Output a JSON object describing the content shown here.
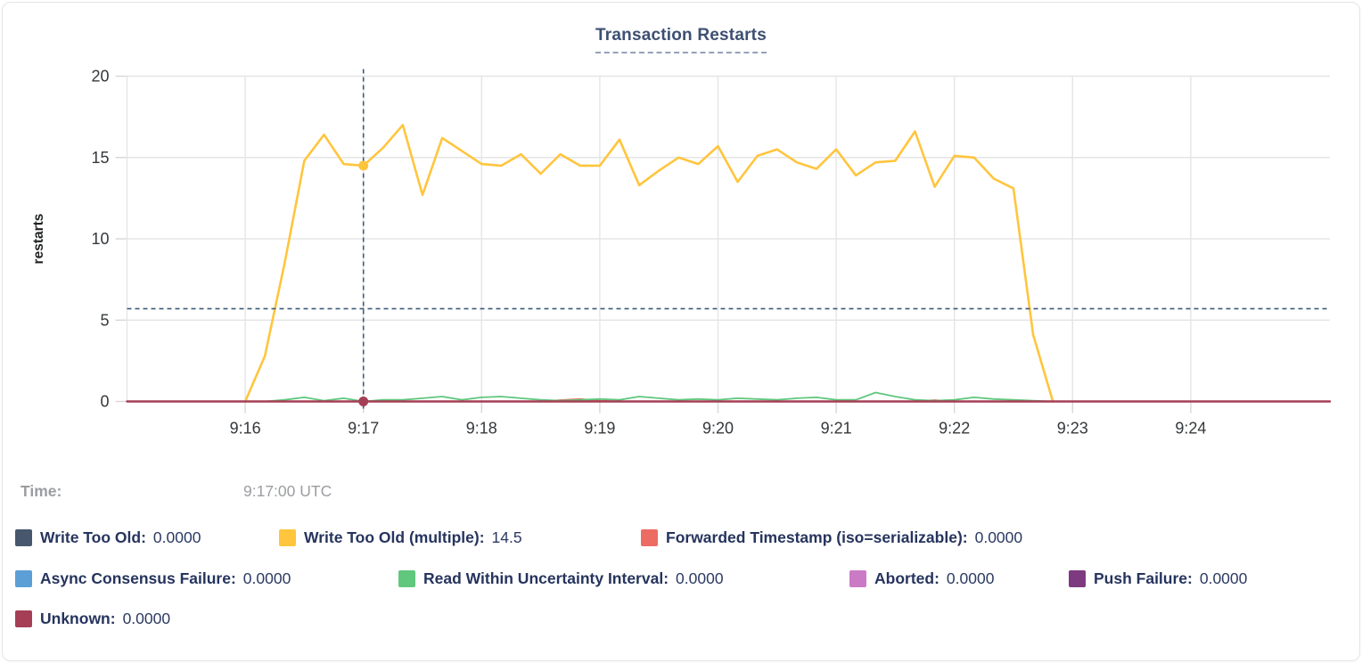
{
  "time_row": {
    "label": "Time:",
    "value": "9:17:00 UTC"
  },
  "chart_data": {
    "type": "line",
    "title": "Transaction Restarts",
    "xlabel": "",
    "ylabel": "restarts",
    "ylim": [
      0,
      20
    ],
    "yticks": [
      0,
      5,
      10,
      15,
      20
    ],
    "xticks": [
      "9:16",
      "9:17",
      "9:18",
      "9:19",
      "9:20",
      "9:21",
      "9:22",
      "9:23",
      "9:24"
    ],
    "x_domain": [
      "9:15:00",
      "9:25:10"
    ],
    "grid": true,
    "legend_position": "bottom",
    "hover": {
      "time": "9:17:00",
      "time_label": "9:17:00 UTC",
      "crosshair_y_value": 5.7,
      "points": [
        {
          "series": "Write Too Old (multiple)",
          "value": 14.5
        },
        {
          "series": "Unknown",
          "value": 0
        }
      ]
    },
    "series": [
      {
        "name": "Write Too Old",
        "color": "#47586d",
        "display_value": "0.0000",
        "constant": 0
      },
      {
        "name": "Write Too Old (multiple)",
        "color": "#ffc53d",
        "display_value": "14.5",
        "start": "9:16:00",
        "step_seconds": 10,
        "values": [
          0,
          2.8,
          8.5,
          14.8,
          16.4,
          14.6,
          14.5,
          15.6,
          17.0,
          12.7,
          16.2,
          15.4,
          14.6,
          14.5,
          15.2,
          14.0,
          15.2,
          14.5,
          14.5,
          16.1,
          13.3,
          14.2,
          15.0,
          14.6,
          15.7,
          13.5,
          15.1,
          15.5,
          14.7,
          14.3,
          15.5,
          13.9,
          14.7,
          14.8,
          16.6,
          13.2,
          15.1,
          15.0,
          13.7,
          13.1,
          4.1,
          0
        ]
      },
      {
        "name": "Forwarded Timestamp (iso=serializable)",
        "color": "#ec6c63",
        "display_value": "0.0000",
        "start": "9:16:00",
        "step_seconds": 10,
        "values": [
          0,
          0,
          0,
          0,
          0,
          0,
          0,
          0,
          0,
          0,
          0,
          0,
          0,
          0,
          0,
          0,
          0.08,
          0.15,
          0.05,
          0,
          0,
          0,
          0,
          0,
          0,
          0,
          0,
          0,
          0,
          0,
          0,
          0,
          0,
          0,
          0,
          0.08,
          0,
          0,
          0,
          0,
          0,
          0
        ]
      },
      {
        "name": "Async Consensus Failure",
        "color": "#5c9fd6",
        "display_value": "0.0000",
        "constant": 0
      },
      {
        "name": "Read Within Uncertainty Interval",
        "color": "#60c77d",
        "display_value": "0.0000",
        "start": "9:16:00",
        "step_seconds": 10,
        "values": [
          0,
          0,
          0.1,
          0.25,
          0.05,
          0.2,
          0,
          0.1,
          0.1,
          0.2,
          0.3,
          0.1,
          0.25,
          0.3,
          0.2,
          0.1,
          0.05,
          0.1,
          0.15,
          0.1,
          0.3,
          0.2,
          0.1,
          0.15,
          0.1,
          0.2,
          0.15,
          0.1,
          0.2,
          0.25,
          0.1,
          0.1,
          0.55,
          0.3,
          0.1,
          0.05,
          0.1,
          0.25,
          0.15,
          0.1,
          0.05,
          0
        ]
      },
      {
        "name": "Aborted",
        "color": "#cb7bc5",
        "display_value": "0.0000",
        "constant": 0
      },
      {
        "name": "Push Failure",
        "color": "#7e3a80",
        "display_value": "0.0000",
        "constant": 0
      },
      {
        "name": "Unknown",
        "color": "#a53f55",
        "display_value": "0.0000",
        "constant": 0
      }
    ],
    "style": {
      "grid_color": "#e5e5e5",
      "tick_color": "#d7d7d7",
      "axis_text_color": "#35383b",
      "crosshair_color": "#3d5a76",
      "title_color": "#3d4f72",
      "legend_text_color": "#26345e"
    }
  }
}
